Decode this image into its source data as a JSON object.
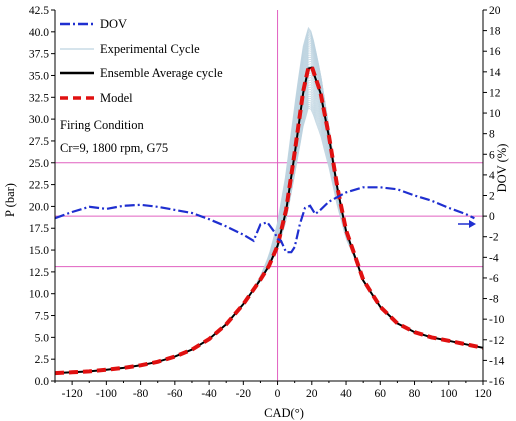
{
  "chart_data": {
    "type": "line",
    "xlabel": "CAD(°)",
    "ylabel_left": "P (bar)",
    "ylabel_right": "DOV (%)",
    "xlim": [
      -130,
      120
    ],
    "ylim_left": [
      0.0,
      42.5
    ],
    "ylim_right": [
      -16,
      20
    ],
    "x_ticks": [
      -120,
      -100,
      -80,
      -60,
      -40,
      -20,
      0,
      20,
      40,
      60,
      80,
      100,
      120
    ],
    "y_left_ticks": [
      "0.0",
      "2.5",
      "5.0",
      "7.5",
      "10.0",
      "12.5",
      "15.0",
      "17.5",
      "20.0",
      "22.5",
      "25.0",
      "27.5",
      "30.0",
      "32.5",
      "35.0",
      "37.5",
      "40.0",
      "42.5"
    ],
    "y_right_ticks": [
      -16,
      -14,
      -12,
      -10,
      -8,
      -6,
      -4,
      -2,
      0,
      2,
      4,
      6,
      8,
      10,
      12,
      14,
      16,
      18,
      20
    ],
    "legend": [
      {
        "label": "DOV",
        "color": "#1f2fd0",
        "style": "dashdot"
      },
      {
        "label": "Experimental Cycle",
        "color": "#c8dbe6",
        "style": "solid"
      },
      {
        "label": "Ensemble Average cycle",
        "color": "#000000",
        "style": "solid"
      },
      {
        "label": "Model",
        "color": "#e01010",
        "style": "dashed"
      }
    ],
    "annotations": [
      "Firing Condition",
      "Cr=9, 1800 rpm, G75"
    ],
    "reference_lines": {
      "vertical_x": 0,
      "horizontal_p": [
        25.0,
        13.1
      ],
      "horizontal_dov_zero": 0,
      "color": "#e060c0"
    },
    "series": [
      {
        "name": "Ensemble Average cycle",
        "axis": "left",
        "x": [
          -130,
          -120,
          -110,
          -100,
          -90,
          -80,
          -70,
          -60,
          -50,
          -40,
          -30,
          -20,
          -10,
          -5,
          0,
          5,
          10,
          15,
          18,
          20,
          25,
          30,
          35,
          40,
          50,
          60,
          70,
          80,
          90,
          100,
          110,
          120
        ],
        "y": [
          0.9,
          1.0,
          1.1,
          1.3,
          1.5,
          1.8,
          2.2,
          2.8,
          3.6,
          4.8,
          6.5,
          8.8,
          11.6,
          13.2,
          15.5,
          19.5,
          26.0,
          33.0,
          35.8,
          35.9,
          33.0,
          28.0,
          22.0,
          17.2,
          11.5,
          8.5,
          6.6,
          5.6,
          5.0,
          4.6,
          4.2,
          3.8
        ]
      },
      {
        "name": "Model",
        "axis": "left",
        "x": [
          -130,
          -120,
          -110,
          -100,
          -90,
          -80,
          -70,
          -60,
          -50,
          -40,
          -30,
          -20,
          -10,
          -5,
          0,
          5,
          10,
          15,
          18,
          20,
          25,
          30,
          35,
          40,
          50,
          60,
          70,
          80,
          90,
          100,
          110,
          120
        ],
        "y": [
          0.9,
          1.0,
          1.1,
          1.3,
          1.5,
          1.8,
          2.2,
          2.8,
          3.6,
          4.8,
          6.5,
          8.8,
          11.6,
          13.2,
          15.5,
          19.6,
          26.2,
          33.2,
          35.9,
          36.0,
          33.1,
          28.1,
          22.1,
          17.3,
          11.6,
          8.5,
          6.6,
          5.6,
          5.0,
          4.6,
          4.2,
          3.8
        ]
      },
      {
        "name": "Experimental Cycle",
        "axis": "left",
        "peak_range": [
          31.0,
          41.5
        ],
        "peak_x_range": [
          12,
          22
        ]
      },
      {
        "name": "DOV",
        "axis": "right",
        "x": [
          -130,
          -120,
          -110,
          -100,
          -90,
          -80,
          -70,
          -60,
          -50,
          -40,
          -30,
          -20,
          -14,
          -10,
          -6,
          -2,
          0,
          2,
          5,
          8,
          10,
          13,
          16,
          19,
          22,
          25,
          30,
          40,
          50,
          60,
          70,
          80,
          90,
          100,
          110,
          115
        ],
        "y": [
          -0.2,
          0.4,
          0.9,
          0.7,
          1.0,
          1.1,
          0.9,
          0.6,
          0.3,
          -0.3,
          -1.0,
          -1.8,
          -2.4,
          -0.8,
          -0.6,
          -1.5,
          -2.2,
          -2.4,
          -3.5,
          -3.5,
          -3.0,
          -0.8,
          0.8,
          1.0,
          0.2,
          0.6,
          1.4,
          2.3,
          2.8,
          2.8,
          2.6,
          2.0,
          1.5,
          0.8,
          0.2,
          -0.2
        ]
      }
    ]
  }
}
